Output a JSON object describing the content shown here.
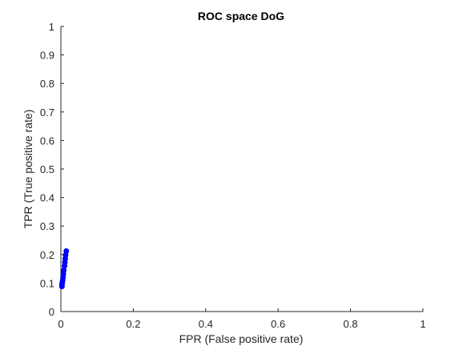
{
  "chart_data": {
    "type": "scatter",
    "title": "ROC space DoG",
    "xlabel": "FPR (False positive rate)",
    "ylabel": "TPR (True positive rate)",
    "xlim": [
      0,
      1
    ],
    "ylim": [
      0,
      1
    ],
    "xticks": [
      "0",
      "0.2",
      "0.4",
      "0.6",
      "0.8",
      "1"
    ],
    "yticks": [
      "0",
      "0.1",
      "0.2",
      "0.3",
      "0.4",
      "0.5",
      "0.6",
      "0.7",
      "0.8",
      "0.9",
      "1"
    ],
    "grid": false,
    "marker_color": "#0000ff",
    "points": [
      {
        "x": 0.003,
        "y": 0.088
      },
      {
        "x": 0.003,
        "y": 0.095
      },
      {
        "x": 0.004,
        "y": 0.102
      },
      {
        "x": 0.005,
        "y": 0.11
      },
      {
        "x": 0.006,
        "y": 0.12
      },
      {
        "x": 0.007,
        "y": 0.132
      },
      {
        "x": 0.008,
        "y": 0.145
      },
      {
        "x": 0.01,
        "y": 0.16
      },
      {
        "x": 0.011,
        "y": 0.172
      },
      {
        "x": 0.012,
        "y": 0.185
      },
      {
        "x": 0.013,
        "y": 0.198
      },
      {
        "x": 0.015,
        "y": 0.212
      }
    ]
  }
}
